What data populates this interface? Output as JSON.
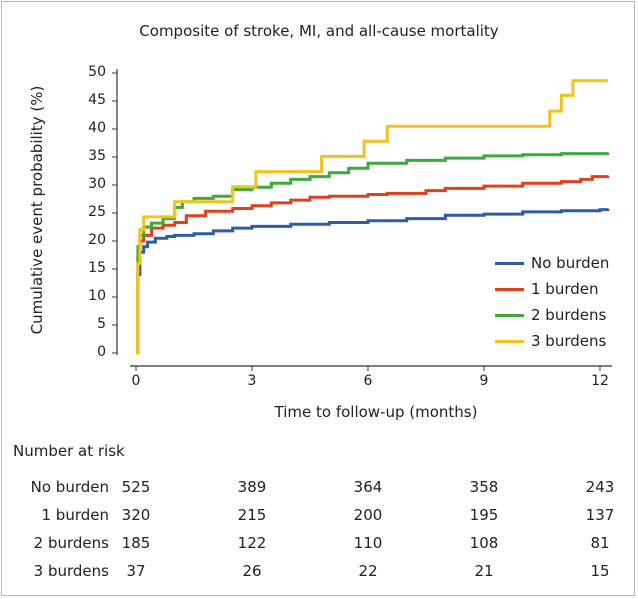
{
  "chart_data": {
    "type": "line",
    "title": "Composite of stroke, MI, and all-cause mortality",
    "xlabel": "Time to follow-up (months)",
    "ylabel": "Cumulative event probability (%)",
    "xlim": [
      0,
      12
    ],
    "ylim": [
      0,
      50
    ],
    "x_ticks": [
      "0",
      "3",
      "6",
      "9",
      "12"
    ],
    "y_ticks": [
      "0",
      "5",
      "10",
      "15",
      "20",
      "25",
      "30",
      "35",
      "40",
      "45",
      "50"
    ],
    "legend_position": "right",
    "series": [
      {
        "name": "No burden",
        "color": "#2f5ca8",
        "points": [
          [
            0,
            0
          ],
          [
            0.05,
            14
          ],
          [
            0.1,
            18
          ],
          [
            0.2,
            19
          ],
          [
            0.3,
            19.8
          ],
          [
            0.5,
            20.5
          ],
          [
            0.8,
            20.8
          ],
          [
            1.0,
            21.0
          ],
          [
            1.5,
            21.3
          ],
          [
            2.0,
            21.8
          ],
          [
            2.5,
            22.3
          ],
          [
            3.0,
            22.6
          ],
          [
            4.0,
            23.0
          ],
          [
            5.0,
            23.3
          ],
          [
            6.0,
            23.6
          ],
          [
            7.0,
            24.0
          ],
          [
            8.0,
            24.6
          ],
          [
            9.0,
            24.8
          ],
          [
            10.0,
            25.2
          ],
          [
            11.0,
            25.4
          ],
          [
            12.0,
            25.6
          ],
          [
            12.2,
            25.8
          ]
        ]
      },
      {
        "name": "1 burden",
        "color": "#e2401c",
        "points": [
          [
            0,
            0
          ],
          [
            0.05,
            17
          ],
          [
            0.1,
            20
          ],
          [
            0.2,
            21
          ],
          [
            0.4,
            22.3
          ],
          [
            0.7,
            22.8
          ],
          [
            1.0,
            23.3
          ],
          [
            1.3,
            24.5
          ],
          [
            1.8,
            25.3
          ],
          [
            2.5,
            25.8
          ],
          [
            3.0,
            26.3
          ],
          [
            3.5,
            26.8
          ],
          [
            4.0,
            27.3
          ],
          [
            4.5,
            27.8
          ],
          [
            5.0,
            28.0
          ],
          [
            6.0,
            28.3
          ],
          [
            6.5,
            28.5
          ],
          [
            7.5,
            29.0
          ],
          [
            8.0,
            29.4
          ],
          [
            9.0,
            29.8
          ],
          [
            10.0,
            30.3
          ],
          [
            11.0,
            30.6
          ],
          [
            11.5,
            31.0
          ],
          [
            11.8,
            31.5
          ],
          [
            12.2,
            31.7
          ]
        ]
      },
      {
        "name": "2 burdens",
        "color": "#3faa3c",
        "points": [
          [
            0,
            0
          ],
          [
            0.05,
            19
          ],
          [
            0.1,
            21
          ],
          [
            0.2,
            22.5
          ],
          [
            0.4,
            23.2
          ],
          [
            0.7,
            24
          ],
          [
            1.0,
            26
          ],
          [
            1.2,
            27.0
          ],
          [
            1.5,
            27.6
          ],
          [
            2.0,
            28.0
          ],
          [
            2.5,
            29.2
          ],
          [
            3.0,
            29.6
          ],
          [
            3.5,
            30.3
          ],
          [
            4.0,
            31.0
          ],
          [
            4.5,
            31.5
          ],
          [
            5.0,
            32.2
          ],
          [
            5.5,
            33.0
          ],
          [
            6.0,
            33.9
          ],
          [
            7.0,
            34.4
          ],
          [
            8.0,
            34.8
          ],
          [
            9.0,
            35.2
          ],
          [
            10.0,
            35.4
          ],
          [
            11.0,
            35.6
          ],
          [
            12.2,
            35.8
          ]
        ]
      },
      {
        "name": "3 burdens",
        "color": "#f2c41b",
        "points": [
          [
            0,
            0
          ],
          [
            0.05,
            16
          ],
          [
            0.1,
            22
          ],
          [
            0.2,
            24.3
          ],
          [
            1.0,
            27.0
          ],
          [
            2.5,
            29.7
          ],
          [
            3.1,
            32.4
          ],
          [
            4.8,
            35.1
          ],
          [
            5.9,
            37.8
          ],
          [
            6.5,
            40.5
          ],
          [
            10.7,
            43.2
          ],
          [
            11.0,
            46.0
          ],
          [
            11.3,
            48.6
          ],
          [
            12.2,
            48.6
          ]
        ]
      }
    ],
    "risk_table": {
      "title": "Number at risk",
      "timepoints": [
        "0",
        "3",
        "6",
        "9",
        "12"
      ],
      "rows": [
        {
          "group": "No burden",
          "values": [
            "525",
            "389",
            "364",
            "358",
            "243"
          ]
        },
        {
          "group": "1 burden",
          "values": [
            "320",
            "215",
            "200",
            "195",
            "137"
          ]
        },
        {
          "group": "2 burdens",
          "values": [
            "185",
            "122",
            "110",
            "108",
            "81"
          ]
        },
        {
          "group": "3 burdens",
          "values": [
            "37",
            "26",
            "22",
            "21",
            "15"
          ]
        }
      ]
    }
  }
}
